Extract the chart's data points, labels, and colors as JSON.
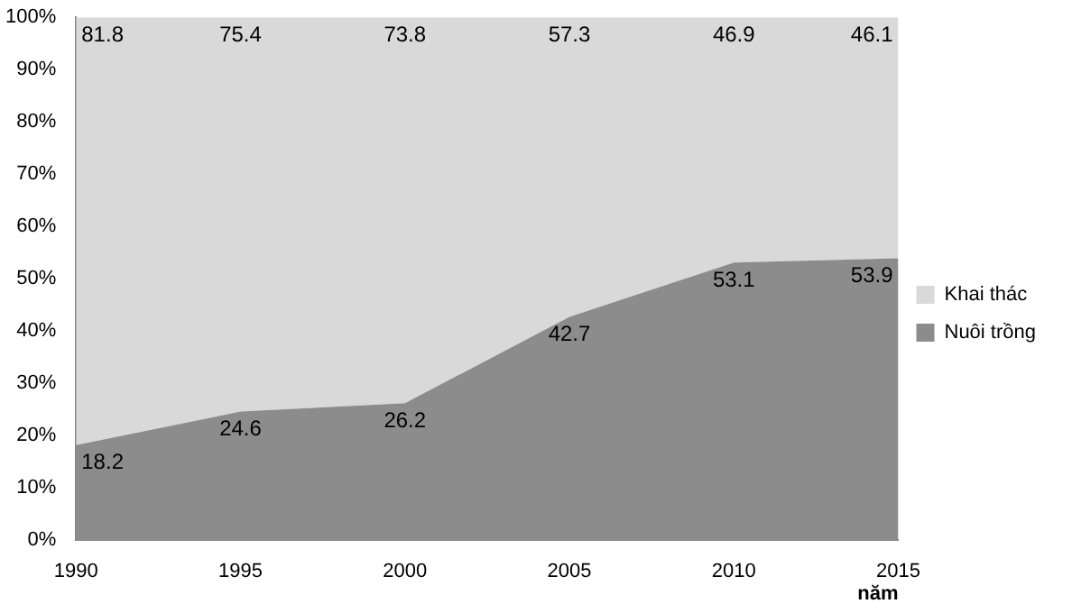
{
  "chart_data": {
    "type": "area",
    "stacked": true,
    "xlabel": "năm",
    "categories": [
      "1990",
      "1995",
      "2000",
      "2005",
      "2010",
      "2015"
    ],
    "series": [
      {
        "name": "Nuôi trồng",
        "color": "#8c8c8c",
        "values": [
          18.2,
          24.6,
          26.2,
          42.7,
          53.1,
          53.9
        ]
      },
      {
        "name": "Khai thác",
        "color": "#d9d9d9",
        "values": [
          81.8,
          75.4,
          73.8,
          57.3,
          46.9,
          46.1
        ]
      }
    ],
    "ylim": [
      0,
      100
    ],
    "yticks": [
      {
        "value": 0,
        "label": "0%"
      },
      {
        "value": 10,
        "label": "10%"
      },
      {
        "value": 20,
        "label": "20%"
      },
      {
        "value": 30,
        "label": "30%"
      },
      {
        "value": 40,
        "label": "40%"
      },
      {
        "value": 50,
        "label": "50%"
      },
      {
        "value": 60,
        "label": "60%"
      },
      {
        "value": 70,
        "label": "70%"
      },
      {
        "value": 80,
        "label": "80%"
      },
      {
        "value": 90,
        "label": "90%"
      },
      {
        "value": 100,
        "label": "100%"
      }
    ],
    "grid": false,
    "legend": "right",
    "data_labels": true
  }
}
